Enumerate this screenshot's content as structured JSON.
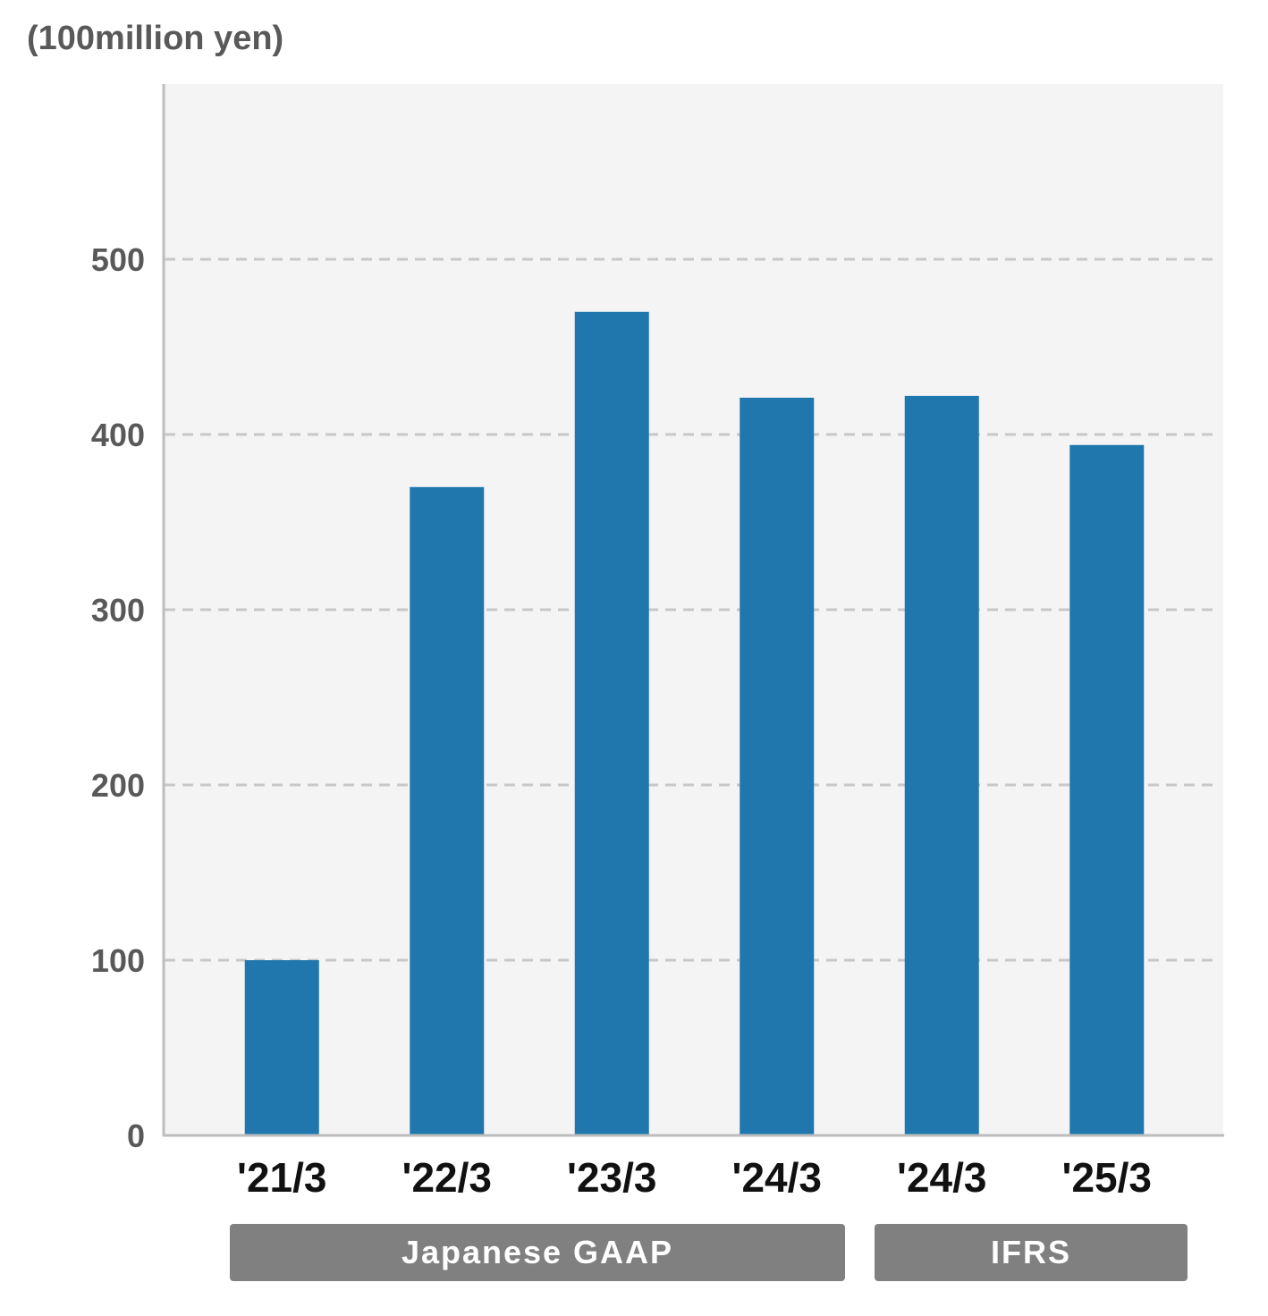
{
  "chart_data": {
    "type": "bar",
    "ylabel": "(100million yen)",
    "categories": [
      "'21/3",
      "'22/3",
      "'23/3",
      "'24/3",
      "'24/3",
      "'25/3"
    ],
    "values": [
      100,
      370,
      470,
      421,
      422,
      394
    ],
    "ylim": [
      0,
      600
    ],
    "yticks": [
      0,
      100,
      200,
      300,
      400,
      500
    ],
    "grid": true,
    "bar_color": "#2077ad",
    "plot_background": "#f4f4f4",
    "groups": [
      {
        "label": "Japanese GAAP",
        "categories": [
          0,
          1,
          2,
          3
        ]
      },
      {
        "label": "IFRS",
        "categories": [
          4,
          5
        ]
      }
    ]
  }
}
